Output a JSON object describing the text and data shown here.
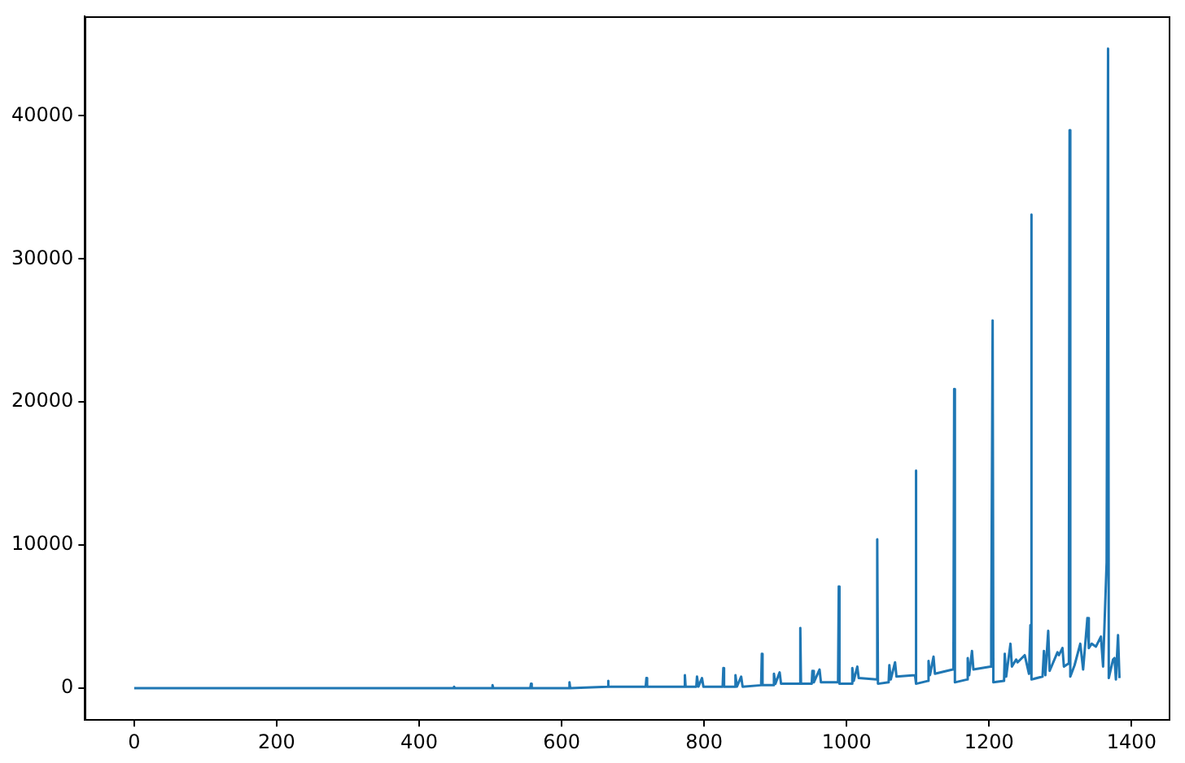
{
  "chart_data": {
    "type": "line",
    "marker": "none",
    "line_style": "solid",
    "grid": false,
    "legend": false,
    "xlim": [
      -69.15,
      1452.15
    ],
    "ylim": [
      -2235,
      46935
    ],
    "xticks": [
      0,
      200,
      400,
      600,
      800,
      1000,
      1200,
      1400
    ],
    "yticks": [
      0,
      10000,
      20000,
      30000,
      40000
    ],
    "series": [
      {
        "color": "#1f77b4",
        "x": [
          0,
          200,
          400,
          448,
          449,
          450,
          502,
          503,
          504,
          556,
          557,
          558,
          610,
          611,
          612,
          664,
          665,
          666,
          718,
          719,
          720,
          772,
          773,
          774,
          789,
          790,
          792,
          797,
          799,
          826,
          827,
          828,
          843,
          844,
          846,
          852,
          854,
          880,
          881,
          882,
          897,
          898,
          900,
          906,
          908,
          934,
          935,
          936,
          951,
          952,
          954,
          962,
          964,
          988,
          989,
          990,
          1007,
          1008,
          1010,
          1015,
          1017,
          1042,
          1043,
          1044,
          1059,
          1060,
          1062,
          1068,
          1070,
          1096,
          1097,
          1098,
          1114,
          1115,
          1117,
          1122,
          1124,
          1149,
          1150,
          1151,
          1152,
          1169,
          1170,
          1172,
          1176,
          1178,
          1202,
          1203,
          1205,
          1206,
          1221,
          1222,
          1224,
          1230,
          1232,
          1238,
          1240,
          1250,
          1256,
          1258,
          1259,
          1260,
          1275,
          1277,
          1279,
          1283,
          1285,
          1296,
          1298,
          1303,
          1305,
          1311,
          1312,
          1313,
          1314,
          1320,
          1328,
          1332,
          1338,
          1340,
          1344,
          1350,
          1357,
          1360,
          1365,
          1367,
          1368,
          1374,
          1376,
          1378,
          1381,
          1383
        ],
        "values": [
          0,
          0,
          0,
          0,
          100,
          0,
          0,
          200,
          0,
          0,
          300,
          0,
          0,
          400,
          0,
          100,
          500,
          100,
          100,
          700,
          100,
          100,
          900,
          100,
          100,
          800,
          100,
          700,
          100,
          100,
          1400,
          100,
          100,
          900,
          100,
          800,
          100,
          200,
          2400,
          200,
          200,
          1000,
          300,
          1100,
          300,
          300,
          4200,
          300,
          300,
          1200,
          400,
          1300,
          400,
          400,
          7100,
          300,
          300,
          1400,
          500,
          1500,
          700,
          600,
          10400,
          300,
          400,
          1600,
          600,
          1800,
          800,
          900,
          15200,
          300,
          500,
          1900,
          900,
          2200,
          1000,
          1300,
          2900,
          20900,
          400,
          600,
          2100,
          900,
          2600,
          1300,
          1500,
          3700,
          25700,
          400,
          500,
          2400,
          800,
          3100,
          1500,
          2000,
          1800,
          2300,
          1000,
          4400,
          33100,
          600,
          800,
          2600,
          900,
          4000,
          1200,
          2500,
          2300,
          2800,
          1500,
          1700,
          6900,
          39000,
          800,
          1600,
          3100,
          1300,
          4900,
          2800,
          3100,
          2900,
          3600,
          1500,
          8800,
          44700,
          700,
          2000,
          2100,
          600,
          3700,
          700
        ]
      }
    ]
  }
}
